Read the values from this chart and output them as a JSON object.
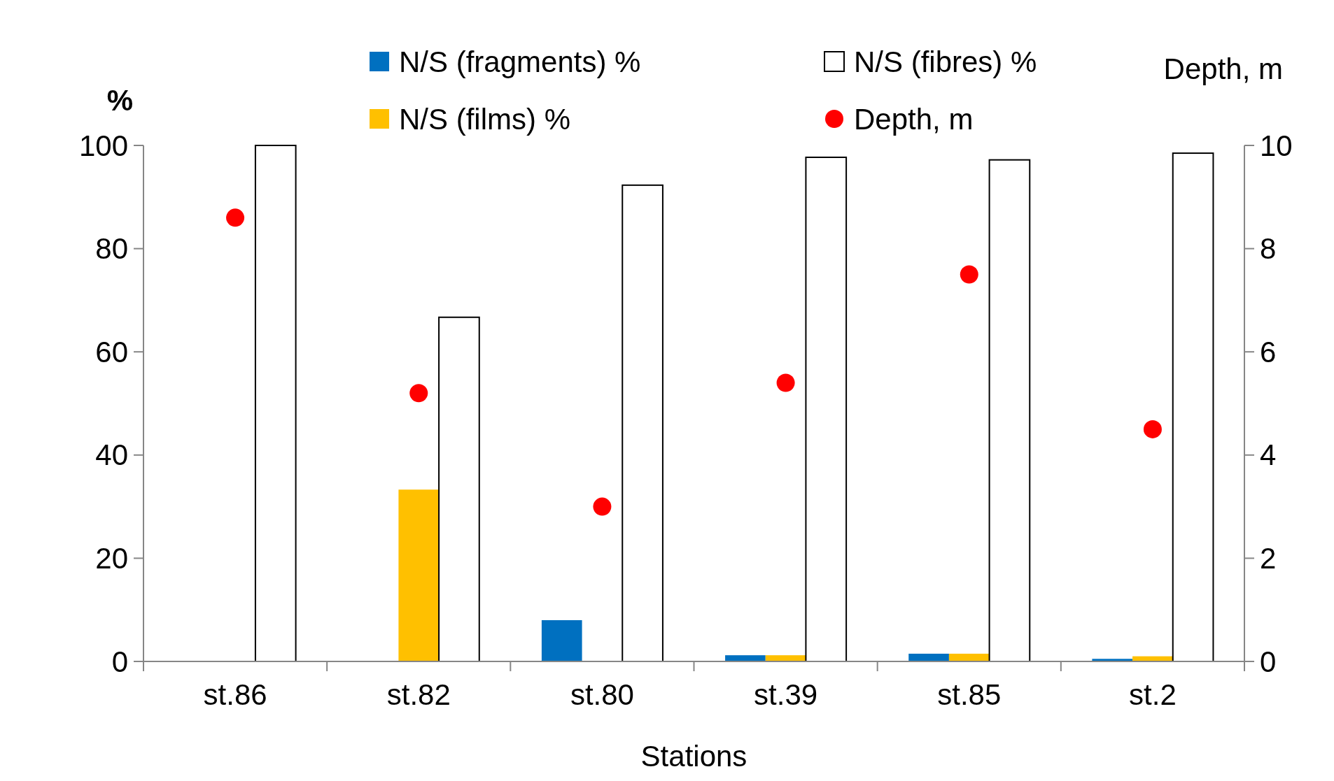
{
  "chart_data": {
    "type": "bar",
    "xlabel": "Stations",
    "ylabel": "%",
    "y2label": "Depth, m",
    "categories": [
      "st.86",
      "st.82",
      "st.80",
      "st.39",
      "st.85",
      "st.2"
    ],
    "series": [
      {
        "name": "N/S (fragments) %",
        "color": "#0070c0",
        "values": [
          0,
          0,
          8,
          1.2,
          1.5,
          0.5
        ]
      },
      {
        "name": "N/S (films) %",
        "color": "#ffc000",
        "values": [
          0,
          33.3,
          0,
          1.2,
          1.5,
          1
        ]
      },
      {
        "name": "N/S (fibres) %",
        "color": "#ffffff",
        "values": [
          100,
          66.7,
          92.3,
          97.7,
          97.2,
          98.5
        ]
      },
      {
        "name": "Depth, m",
        "type": "scatter",
        "axis": "y2",
        "color": "#ff0000",
        "marker": "circle",
        "values": [
          8.6,
          5.2,
          3.0,
          5.4,
          7.5,
          4.5
        ]
      }
    ],
    "ylim": [
      0,
      100
    ],
    "yticks": [
      0,
      20,
      40,
      60,
      80,
      100
    ],
    "y2lim": [
      0,
      10
    ],
    "y2ticks": [
      0,
      2,
      4,
      6,
      8,
      10
    ],
    "grid": false,
    "legend": "top"
  }
}
